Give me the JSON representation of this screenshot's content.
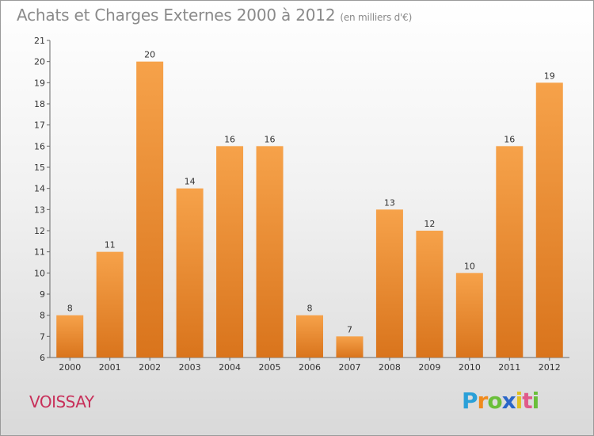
{
  "header": {
    "title": "Achats et Charges Externes 2000 à 2012",
    "subtitle": "(en milliers d'€)"
  },
  "footer": {
    "commune": "VOISSAY",
    "logo_text": "Proxiti"
  },
  "colors": {
    "bar_light": "#f6a24a",
    "bar_dark": "#d9741c",
    "axis": "#666666",
    "text": "#333333"
  },
  "chart_data": {
    "type": "bar",
    "title": "Achats et Charges Externes 2000 à 2012",
    "subtitle": "(en milliers d'€)",
    "categories": [
      "2000",
      "2001",
      "2002",
      "2003",
      "2004",
      "2005",
      "2006",
      "2007",
      "2008",
      "2009",
      "2010",
      "2011",
      "2012"
    ],
    "values": [
      8,
      11,
      20,
      14,
      16,
      16,
      8,
      7,
      13,
      12,
      10,
      16,
      19
    ],
    "data_labels": [
      "8",
      "11",
      "20",
      "14",
      "16",
      "16",
      "8",
      "7",
      "13",
      "12",
      "10",
      "16",
      "19"
    ],
    "ylim": [
      6,
      21
    ],
    "yticks": [
      6,
      7,
      8,
      9,
      10,
      11,
      12,
      13,
      14,
      15,
      16,
      17,
      18,
      19,
      20,
      21
    ],
    "xlabel": "",
    "ylabel": "",
    "grid": false,
    "legend": "none"
  }
}
